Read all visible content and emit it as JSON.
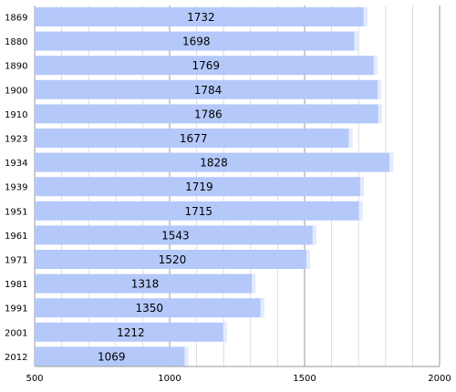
{
  "chart_data": {
    "type": "bar",
    "orientation": "horizontal",
    "categories": [
      "1869",
      "1880",
      "1890",
      "1900",
      "1910",
      "1923",
      "1934",
      "1939",
      "1951",
      "1961",
      "1971",
      "1981",
      "1991",
      "2001",
      "2012"
    ],
    "values": [
      1732,
      1698,
      1769,
      1784,
      1786,
      1677,
      1828,
      1719,
      1715,
      1543,
      1520,
      1318,
      1350,
      1212,
      1069
    ],
    "xlim": [
      500,
      2000
    ],
    "x_ticks": [
      500,
      1000,
      1500,
      2000
    ],
    "x_tick_labels": [
      "500",
      "1000",
      "1500",
      "2000"
    ],
    "grid": true,
    "bar_color": "#b4c8fa",
    "bar_edge_color": "#e4ebfd"
  }
}
